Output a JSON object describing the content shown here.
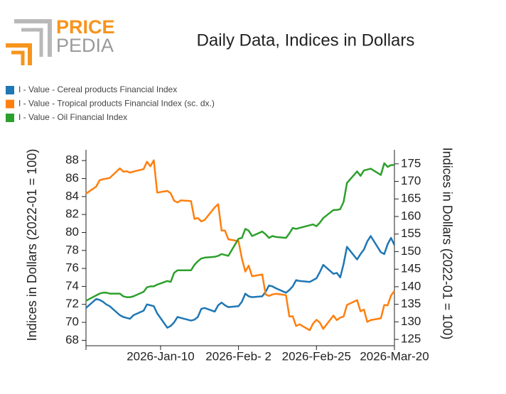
{
  "logo": {
    "top": "PRICE",
    "bottom": "PEDIA"
  },
  "chart_data": {
    "type": "line",
    "title": "Daily Data, Indices in Dollars",
    "ylabel": "Indices in Dollars (2022-01 = 100)",
    "y2label": "Indices in Dollars (2022-01 = 100)",
    "xlim": [
      "2025-12-19",
      "2026-03-20"
    ],
    "xticks": [
      {
        "value": "2026-01-10",
        "label": "2026-Jan-10"
      },
      {
        "value": "2026-02-02",
        "label": "2026-Feb- 2"
      },
      {
        "value": "2026-02-25",
        "label": "2026-Feb-25"
      },
      {
        "value": "2026-03-20",
        "label": "2026-Mar-20"
      }
    ],
    "ylim": [
      67.4,
      89.2
    ],
    "yticks": [
      68,
      70,
      72,
      74,
      76,
      78,
      80,
      82,
      84,
      86,
      88
    ],
    "y2lim": [
      123.2,
      179
    ],
    "y2ticks": [
      125,
      130,
      135,
      140,
      145,
      150,
      155,
      160,
      165,
      170,
      175
    ],
    "legend": "top-left",
    "x": [
      "2025-12-19",
      "2025-12-22",
      "2025-12-23",
      "2025-12-24",
      "2025-12-25",
      "2025-12-26",
      "2025-12-29",
      "2025-12-30",
      "2025-12-31",
      "2026-01-01",
      "2026-01-02",
      "2026-01-05",
      "2026-01-06",
      "2026-01-07",
      "2026-01-08",
      "2026-01-09",
      "2026-01-12",
      "2026-01-13",
      "2026-01-14",
      "2026-01-15",
      "2026-01-16",
      "2026-01-19",
      "2026-01-20",
      "2026-01-21",
      "2026-01-22",
      "2026-01-23",
      "2026-01-26",
      "2026-01-27",
      "2026-01-28",
      "2026-01-29",
      "2026-01-30",
      "2026-02-02",
      "2026-02-03",
      "2026-02-04",
      "2026-02-05",
      "2026-02-06",
      "2026-02-09",
      "2026-02-10",
      "2026-02-11",
      "2026-02-12",
      "2026-02-13",
      "2026-02-16",
      "2026-02-17",
      "2026-02-18",
      "2026-02-19",
      "2026-02-20",
      "2026-02-23",
      "2026-02-24",
      "2026-02-25",
      "2026-02-26",
      "2026-02-27",
      "2026-03-02",
      "2026-03-03",
      "2026-03-04",
      "2026-03-05",
      "2026-03-06",
      "2026-03-09",
      "2026-03-10",
      "2026-03-11",
      "2026-03-12",
      "2026-03-13",
      "2026-03-16",
      "2026-03-17",
      "2026-03-18",
      "2026-03-19",
      "2026-03-20"
    ],
    "series": [
      {
        "name": "I - Value - Cereal products Financial Index",
        "color": "#1f77b4",
        "axis": "y",
        "values": [
          71.6,
          72.6,
          72.5,
          72.3,
          72.0,
          71.8,
          70.8,
          70.6,
          70.5,
          70.4,
          70.8,
          71.3,
          72.0,
          71.9,
          71.8,
          71.0,
          69.4,
          69.6,
          70.0,
          70.6,
          70.5,
          70.2,
          70.3,
          70.6,
          71.5,
          71.6,
          71.2,
          71.9,
          72.2,
          71.9,
          71.7,
          71.8,
          72.3,
          73.2,
          72.9,
          72.8,
          72.9,
          73.4,
          74.1,
          74.0,
          73.8,
          73.3,
          73.6,
          74.0,
          74.7,
          74.6,
          74.5,
          74.7,
          74.9,
          75.6,
          76.4,
          75.4,
          75.5,
          75.0,
          76.5,
          78.4,
          77.0,
          77.6,
          78.1,
          79.0,
          79.6,
          77.8,
          77.6,
          78.7,
          79.4,
          78.6
        ]
      },
      {
        "name": "I - Value - Tropical products Financial Index (sc. dx.)",
        "color": "#ff7f0e",
        "axis": "y2",
        "values": [
          166.5,
          168.5,
          170.3,
          170.6,
          170.8,
          171.0,
          173.7,
          172.8,
          172.9,
          172.5,
          172.8,
          173.5,
          175.6,
          174.3,
          176.0,
          166.8,
          167.3,
          166.6,
          164.5,
          164.0,
          164.6,
          164.4,
          159.3,
          159.6,
          158.6,
          159.0,
          162.6,
          163.5,
          156.0,
          156.0,
          153.5,
          153.0,
          148.0,
          144.3,
          146.0,
          143.0,
          143.5,
          137.8,
          137.4,
          137.8,
          138.0,
          137.6,
          131.5,
          131.6,
          128.8,
          129.3,
          127.6,
          129.5,
          130.6,
          129.8,
          128.0,
          131.8,
          130.5,
          131.2,
          131.5,
          134.8,
          136.2,
          133.0,
          133.5,
          130.0,
          130.5,
          131.0,
          134.8,
          134.7,
          137.5,
          138.8
        ]
      },
      {
        "name": "I - Value - Oil Financial Index",
        "color": "#2ca02c",
        "axis": "y",
        "values": [
          72.4,
          73.0,
          73.2,
          73.3,
          73.3,
          73.2,
          73.2,
          72.9,
          72.8,
          72.8,
          72.9,
          73.4,
          73.9,
          74.0,
          74.0,
          74.2,
          74.6,
          74.5,
          75.5,
          75.8,
          75.8,
          75.8,
          76.4,
          76.8,
          77.1,
          77.2,
          77.3,
          77.4,
          77.6,
          77.5,
          77.4,
          79.3,
          79.4,
          80.4,
          80.2,
          79.6,
          80.1,
          79.8,
          79.4,
          79.6,
          79.5,
          79.4,
          79.9,
          80.5,
          80.4,
          80.5,
          80.8,
          80.9,
          80.7,
          81.1,
          81.6,
          82.5,
          82.5,
          82.6,
          83.4,
          85.5,
          86.8,
          86.3,
          86.9,
          87.0,
          87.1,
          86.4,
          87.7,
          87.3,
          87.5,
          87.5
        ]
      }
    ]
  }
}
